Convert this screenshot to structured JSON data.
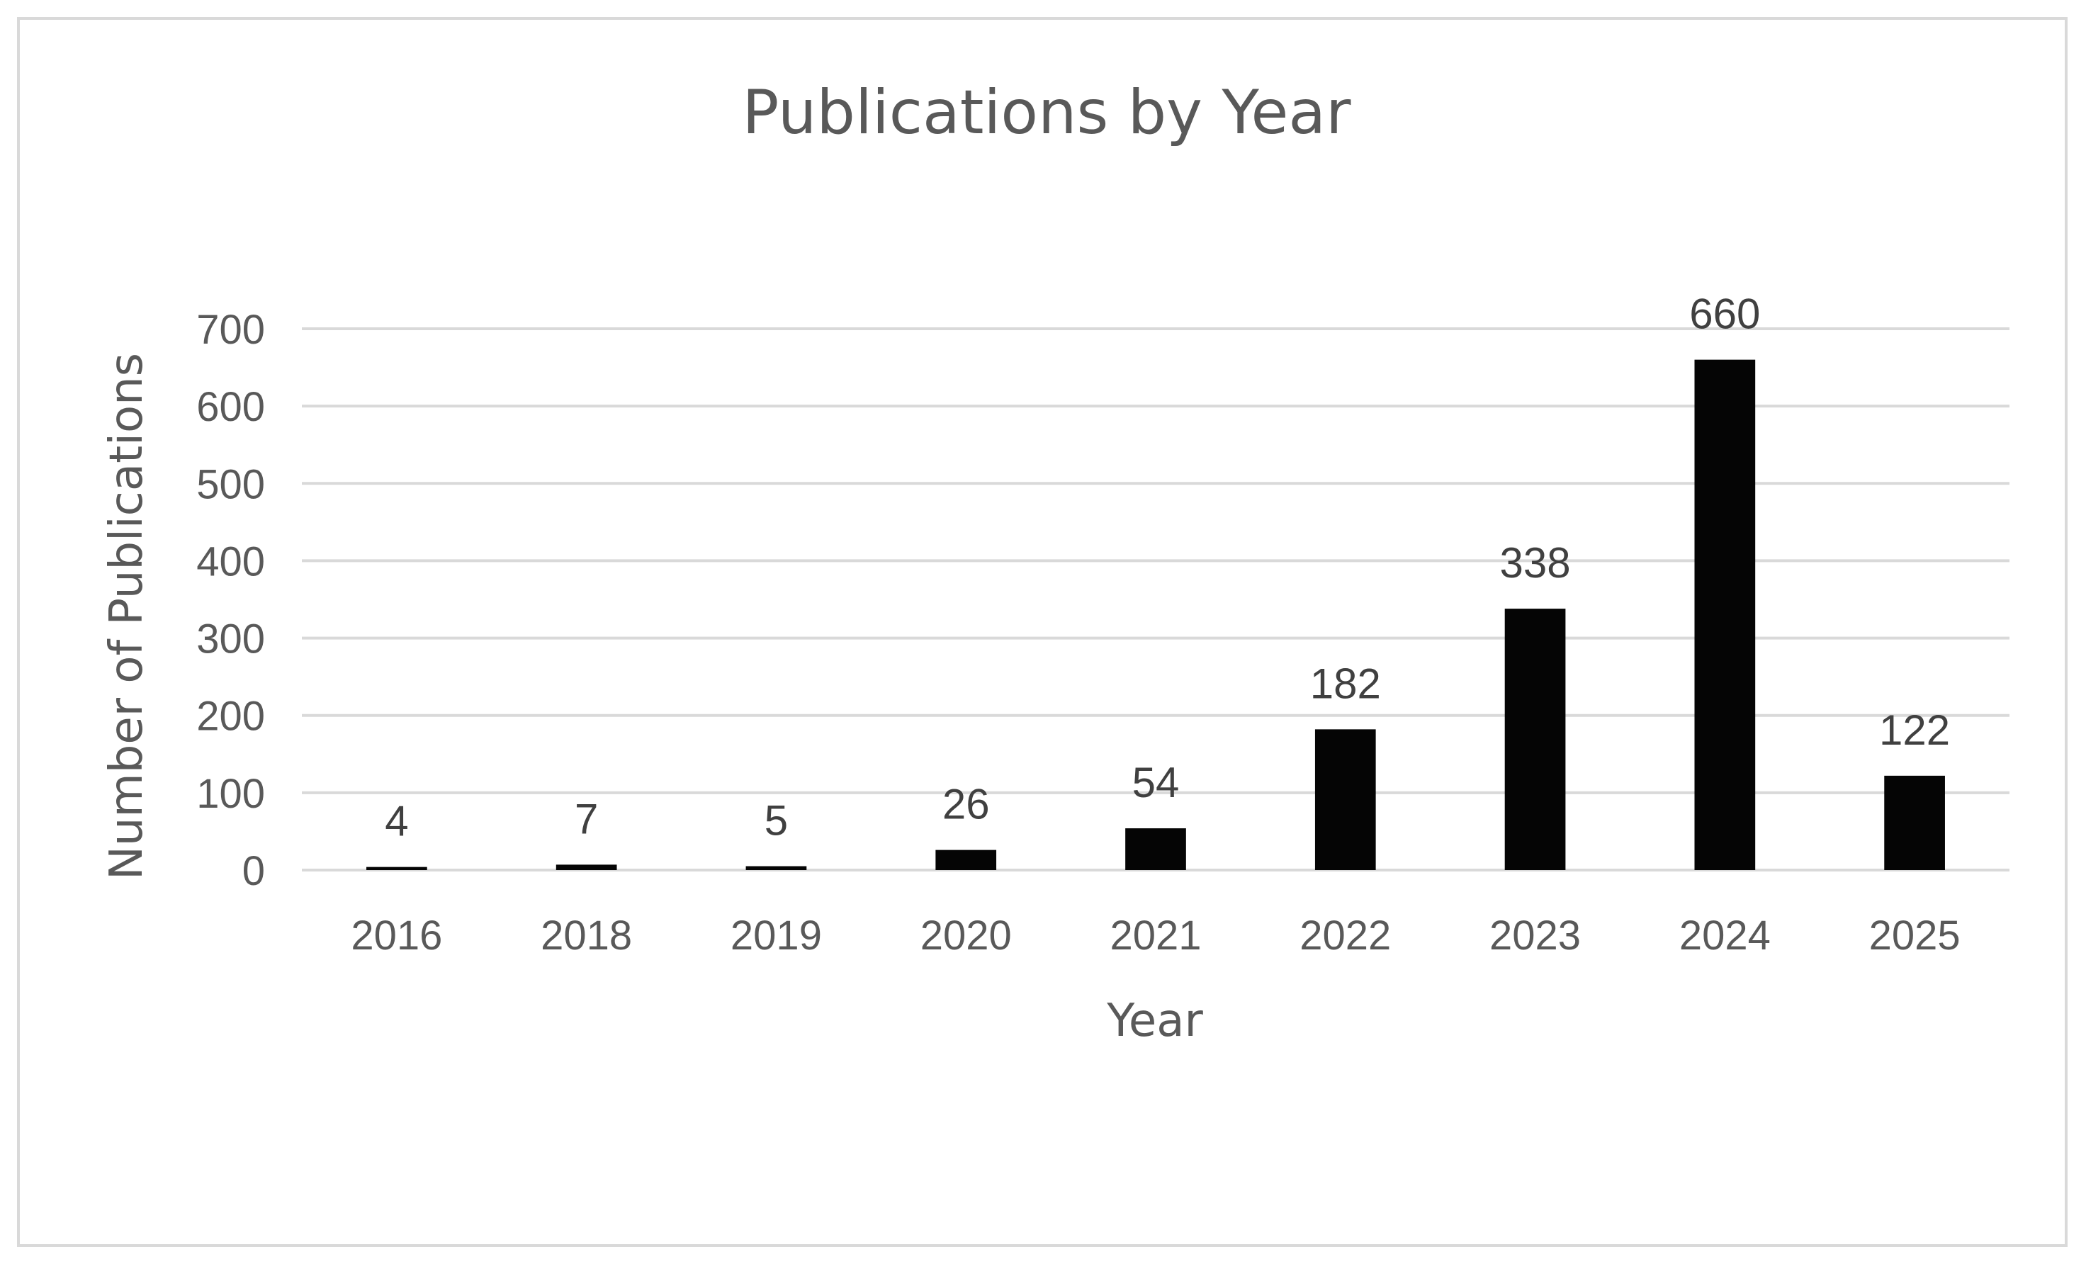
{
  "chart_data": {
    "type": "bar",
    "title": "Publications by Year",
    "xlabel": "Year",
    "ylabel": "Number of Publications",
    "categories": [
      "2016",
      "2018",
      "2019",
      "2020",
      "2021",
      "2022",
      "2023",
      "2024",
      "2025"
    ],
    "values": [
      4,
      7,
      5,
      26,
      54,
      182,
      338,
      660,
      122
    ],
    "data_labels": [
      "4",
      "7",
      "5",
      "26",
      "54",
      "182",
      "338",
      "660",
      "122"
    ],
    "ylim": [
      0,
      700
    ],
    "yticks": [
      0,
      100,
      200,
      300,
      400,
      500,
      600,
      700
    ],
    "ytick_labels": [
      "0",
      "100",
      "200",
      "300",
      "400",
      "500",
      "600",
      "700"
    ],
    "grid": true,
    "legend": "none",
    "bar_color": "#050505",
    "grid_color": "#d9d9d9",
    "text_color": "#595959"
  }
}
